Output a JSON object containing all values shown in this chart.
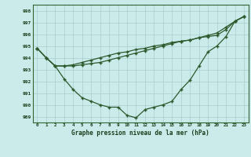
{
  "xlabel": "Graphe pression niveau de la mer (hPa)",
  "bg_color": "#cbeaea",
  "grid_color": "#a8cccc",
  "line_color": "#2d5a2d",
  "x_labels": [
    "0",
    "1",
    "2",
    "3",
    "4",
    "5",
    "6",
    "7",
    "8",
    "9",
    "10",
    "11",
    "12",
    "13",
    "14",
    "15",
    "16",
    "17",
    "18",
    "19",
    "20",
    "21",
    "22",
    "23"
  ],
  "ylim": [
    988.5,
    998.5
  ],
  "yticks": [
    989,
    990,
    991,
    992,
    993,
    994,
    995,
    996,
    997,
    998
  ],
  "series1": [
    994.8,
    994.0,
    993.3,
    992.2,
    991.3,
    990.6,
    990.3,
    990.0,
    989.8,
    989.8,
    989.1,
    988.9,
    989.6,
    989.8,
    990.0,
    990.3,
    991.3,
    992.1,
    993.3,
    994.5,
    995.0,
    995.8,
    997.1,
    997.5
  ],
  "series2": [
    994.8,
    994.0,
    993.3,
    993.3,
    993.3,
    993.4,
    993.5,
    993.6,
    993.8,
    994.0,
    994.2,
    994.4,
    994.6,
    994.8,
    995.0,
    995.2,
    995.4,
    995.5,
    995.7,
    995.9,
    996.1,
    996.6,
    997.1,
    997.5
  ],
  "series3": [
    994.8,
    994.0,
    993.3,
    993.3,
    993.4,
    993.6,
    993.8,
    994.0,
    994.2,
    994.4,
    994.5,
    994.7,
    994.8,
    995.0,
    995.1,
    995.3,
    995.4,
    995.5,
    995.7,
    995.8,
    995.9,
    996.4,
    997.1,
    997.5
  ]
}
